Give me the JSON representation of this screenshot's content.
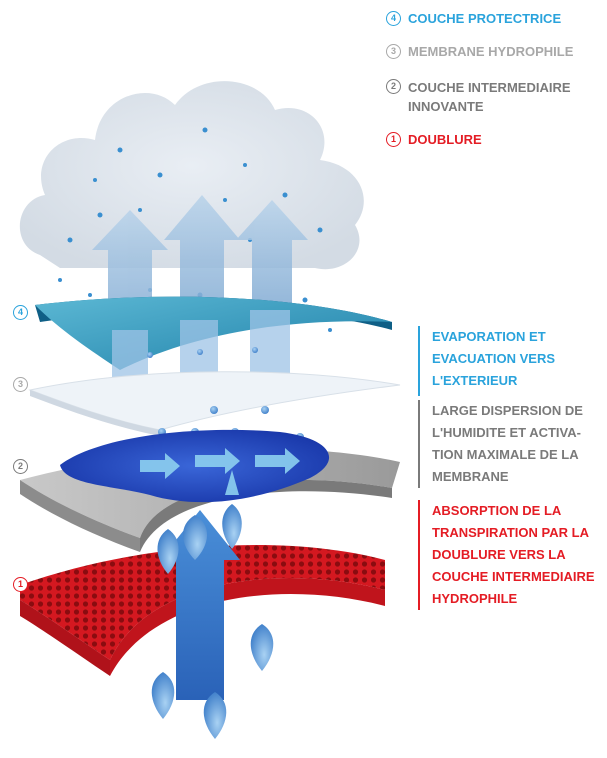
{
  "colors": {
    "blue": "#2aa3dc",
    "grey": "#a8a8a8",
    "dark_grey": "#7a7a7a",
    "red": "#e41c24"
  },
  "legend": [
    {
      "num": "4",
      "label": "COUCHE PROTECTRICE",
      "color": "#2aa3dc"
    },
    {
      "num": "3",
      "label": "MEMBRANE HYDROPHILE",
      "color": "#a8a8a8"
    },
    {
      "num": "2",
      "label": "COUCHE INTERMEDIAIRE\nINNOVANTE",
      "color": "#7a7a7a"
    },
    {
      "num": "1",
      "label": "DOUBLURE",
      "color": "#e41c24"
    }
  ],
  "layer_markers": [
    {
      "num": "4",
      "color": "#2aa3dc"
    },
    {
      "num": "3",
      "color": "#a8a8a8"
    },
    {
      "num": "2",
      "color": "#7a7a7a"
    },
    {
      "num": "1",
      "color": "#e41c24"
    }
  ],
  "annotations": [
    {
      "text": "EVAPORATION ET\nEVACUATION VERS\nL'EXTERIEUR",
      "color": "#2aa3dc"
    },
    {
      "text": "LARGE DISPERSION DE\nL'HUMIDITE ET ACTIVA-\nTION MAXIMALE DE LA\nMEMBRANE",
      "color": "#7a7a7a"
    },
    {
      "text": "ABSORPTION DE LA\nTRANSPIRATION PAR LA\nDOUBLURE VERS LA\nCOUCHE INTERMEDIAIRE\nHYDROPHILE",
      "color": "#e41c24"
    }
  ]
}
